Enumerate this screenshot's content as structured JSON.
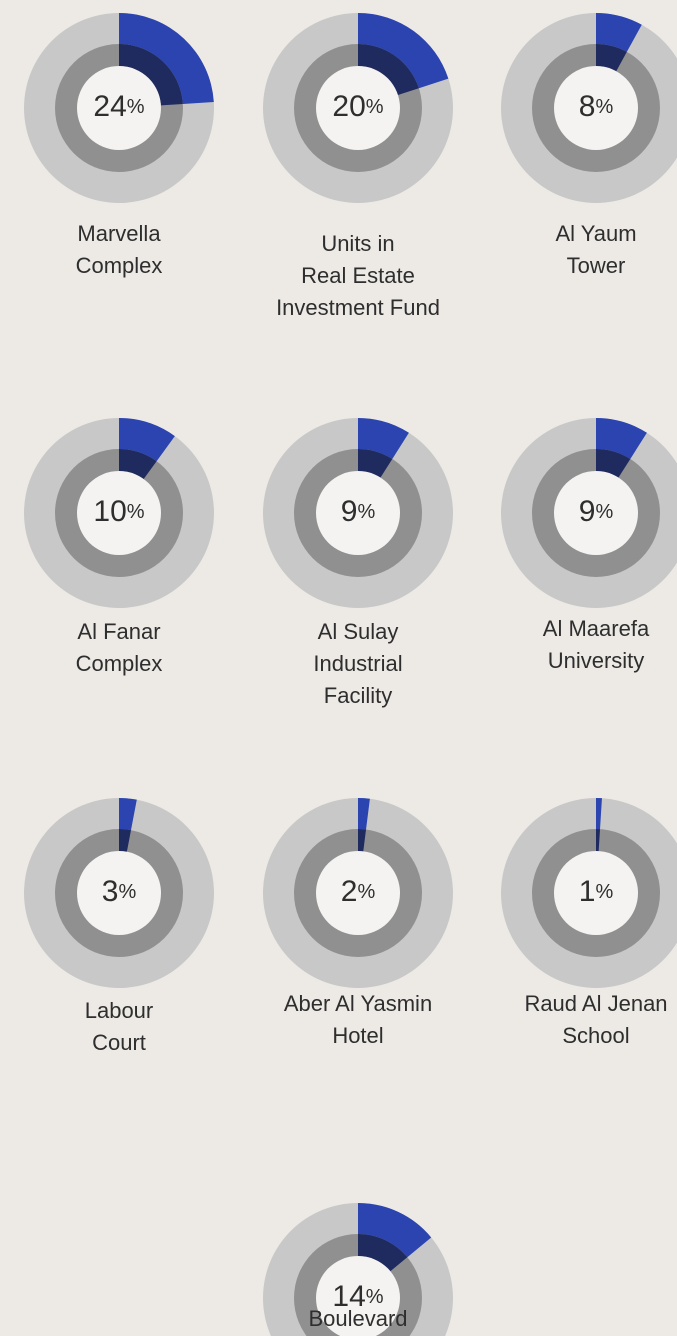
{
  "chart_data": [
    {
      "type": "donut",
      "title": [
        "Marvella",
        "Complex"
      ],
      "values": [
        24
      ],
      "unit": "%",
      "color": "#2b44b0",
      "inner_color": "#1f2a5e"
    },
    {
      "type": "donut",
      "title": [
        "Units in",
        "Real Estate",
        "Investment Fund"
      ],
      "values": [
        20
      ],
      "unit": "%",
      "color": "#2b44b0",
      "inner_color": "#1f2a5e"
    },
    {
      "type": "donut",
      "title": [
        "Al Yaum",
        "Tower"
      ],
      "values": [
        8
      ],
      "unit": "%",
      "color": "#2b44b0",
      "inner_color": "#1f2a5e"
    },
    {
      "type": "donut",
      "title": [
        "Al Fanar",
        "Complex"
      ],
      "values": [
        10
      ],
      "unit": "%",
      "color": "#2b44b0",
      "inner_color": "#1f2a5e"
    },
    {
      "type": "donut",
      "title": [
        "Al Sulay",
        "Industrial",
        "Facility"
      ],
      "values": [
        9
      ],
      "unit": "%",
      "color": "#2b44b0",
      "inner_color": "#1f2a5e"
    },
    {
      "type": "donut",
      "title": [
        "Al Maarefa",
        "University"
      ],
      "values": [
        9
      ],
      "unit": "%",
      "color": "#2b44b0",
      "inner_color": "#1f2a5e"
    },
    {
      "type": "donut",
      "title": [
        "Labour",
        "Court"
      ],
      "values": [
        3
      ],
      "unit": "%",
      "color": "#2b44b0",
      "inner_color": "#1f2a5e"
    },
    {
      "type": "donut",
      "title": [
        "Aber Al Yasmin",
        "Hotel"
      ],
      "values": [
        2
      ],
      "unit": "%",
      "color": "#2b44b0",
      "inner_color": "#1f2a5e"
    },
    {
      "type": "donut",
      "title": [
        "Raud Al Jenan",
        "School"
      ],
      "values": [
        1
      ],
      "unit": "%",
      "color": "#2b44b0",
      "inner_color": "#1f2a5e"
    },
    {
      "type": "donut",
      "title": [
        "Boulevard"
      ],
      "values": [
        14
      ],
      "unit": "%",
      "color": "#2b44b0",
      "inner_color": "#1f2a5e"
    }
  ]
}
